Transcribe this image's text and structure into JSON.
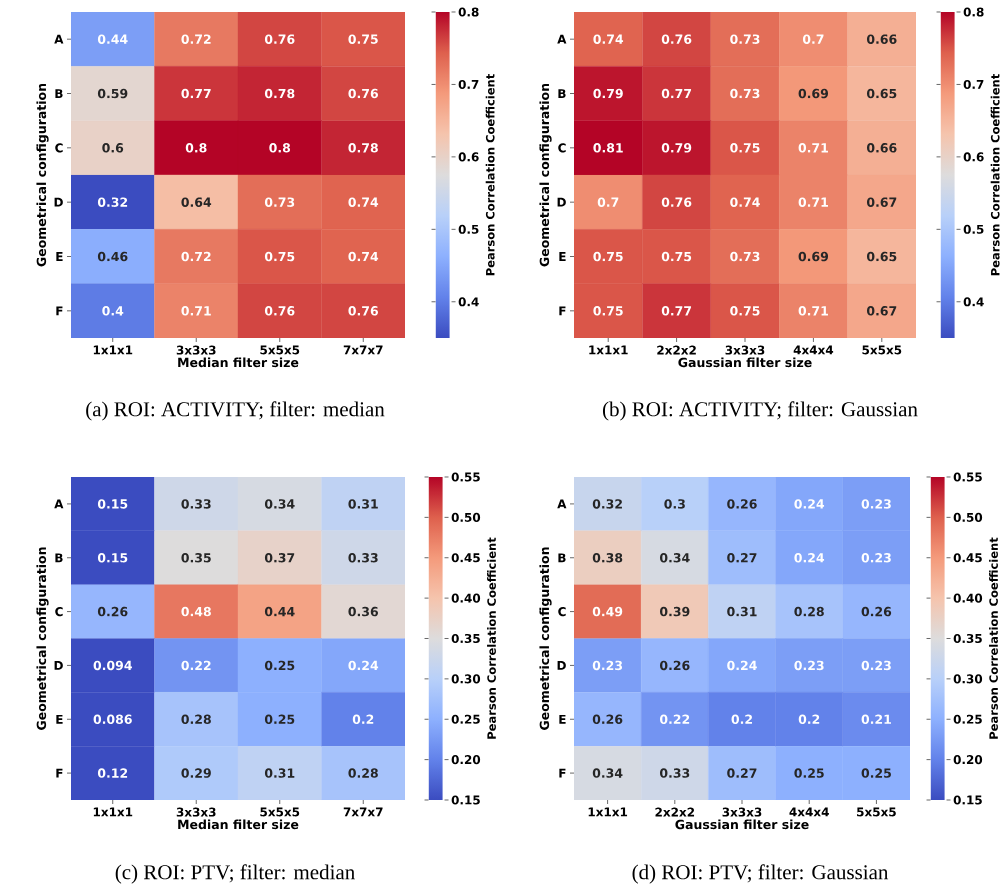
{
  "chart_data": [
    {
      "type": "heatmap",
      "xlabel": "Median filter size",
      "ylabel": "Geometrical configuration",
      "clabel": "Pearson Correlation Coefficient",
      "categories": [
        "1x1x1",
        "3x3x3",
        "5x5x5",
        "7x7x7"
      ],
      "y_categories": [
        "A",
        "B",
        "C",
        "D",
        "E",
        "F"
      ],
      "cells": [
        [
          0.44,
          0.72,
          0.76,
          0.75
        ],
        [
          0.59,
          0.77,
          0.78,
          0.76
        ],
        [
          0.6,
          0.8,
          0.8,
          0.78
        ],
        [
          0.32,
          0.64,
          0.73,
          0.74
        ],
        [
          0.46,
          0.72,
          0.75,
          0.74
        ],
        [
          0.4,
          0.71,
          0.76,
          0.76
        ]
      ],
      "clim": [
        0.35,
        0.8
      ],
      "cticks": [
        0.4,
        0.5,
        0.6,
        0.7,
        0.8
      ],
      "data_labels": true,
      "annotations": [
        "(a) ROI: ACTIVITY; filter: median"
      ]
    },
    {
      "type": "heatmap",
      "xlabel": "Gaussian filter size",
      "ylabel": "Geometrical configuration",
      "clabel": "Pearson Correlation Coefficient",
      "categories": [
        "1x1x1",
        "2x2x2",
        "3x3x3",
        "4x4x4",
        "5x5x5"
      ],
      "y_categories": [
        "A",
        "B",
        "C",
        "D",
        "E",
        "F"
      ],
      "cells": [
        [
          0.74,
          0.76,
          0.73,
          0.7,
          0.66
        ],
        [
          0.79,
          0.77,
          0.73,
          0.69,
          0.65
        ],
        [
          0.81,
          0.79,
          0.75,
          0.71,
          0.66
        ],
        [
          0.7,
          0.76,
          0.74,
          0.71,
          0.67
        ],
        [
          0.75,
          0.75,
          0.73,
          0.69,
          0.65
        ],
        [
          0.75,
          0.77,
          0.75,
          0.71,
          0.67
        ]
      ],
      "clim": [
        0.35,
        0.8
      ],
      "cticks": [
        0.4,
        0.5,
        0.6,
        0.7,
        0.8
      ],
      "data_labels": true,
      "annotations": [
        "(b) ROI: ACTIVITY; filter: Gaussian"
      ]
    },
    {
      "type": "heatmap",
      "xlabel": "Median filter size",
      "ylabel": "Geometrical configuration",
      "clabel": "Pearson Correlation Coefficient",
      "categories": [
        "1x1x1",
        "3x3x3",
        "5x5x5",
        "7x7x7"
      ],
      "y_categories": [
        "A",
        "B",
        "C",
        "D",
        "E",
        "F"
      ],
      "cells": [
        [
          0.15,
          0.33,
          0.34,
          0.31
        ],
        [
          0.15,
          0.35,
          0.37,
          0.33
        ],
        [
          0.26,
          0.48,
          0.44,
          0.36
        ],
        [
          0.094,
          0.22,
          0.25,
          0.24
        ],
        [
          0.086,
          0.28,
          0.25,
          0.2
        ],
        [
          0.12,
          0.29,
          0.31,
          0.28
        ]
      ],
      "clim": [
        0.15,
        0.55
      ],
      "cticks": [
        {
          "value": 0.15,
          "label": "0.15"
        },
        {
          "value": 0.2,
          "label": "0.20"
        },
        {
          "value": 0.25,
          "label": "0.25"
        },
        {
          "value": 0.3,
          "label": "0.30"
        },
        {
          "value": 0.35,
          "label": "0.35"
        },
        {
          "value": 0.4,
          "label": "0.40"
        },
        {
          "value": 0.45,
          "label": "0.45"
        },
        {
          "value": 0.5,
          "label": "0.50"
        },
        {
          "value": 0.55,
          "label": "0.55"
        }
      ],
      "data_labels": true,
      "annotations": [
        "(c) ROI: PTV; filter: median"
      ]
    },
    {
      "type": "heatmap",
      "xlabel": "Gaussian filter size",
      "ylabel": "Geometrical configuration",
      "clabel": "Pearson Correlation Coefficient",
      "categories": [
        "1x1x1",
        "2x2x2",
        "3x3x3",
        "4x4x4",
        "5x5x5"
      ],
      "y_categories": [
        "A",
        "B",
        "C",
        "D",
        "E",
        "F"
      ],
      "cells": [
        [
          0.32,
          0.3,
          0.26,
          0.24,
          0.23
        ],
        [
          0.38,
          0.34,
          0.27,
          0.24,
          0.23
        ],
        [
          0.49,
          0.39,
          0.31,
          0.28,
          0.26
        ],
        [
          0.23,
          0.26,
          0.24,
          0.23,
          0.23
        ],
        [
          0.26,
          0.22,
          0.2,
          0.2,
          0.21
        ],
        [
          0.34,
          0.33,
          0.27,
          0.25,
          0.25
        ]
      ],
      "clim": [
        0.15,
        0.55
      ],
      "cticks": [
        {
          "value": 0.15,
          "label": "0.15"
        },
        {
          "value": 0.2,
          "label": "0.20"
        },
        {
          "value": 0.25,
          "label": "0.25"
        },
        {
          "value": 0.3,
          "label": "0.30"
        },
        {
          "value": 0.35,
          "label": "0.35"
        },
        {
          "value": 0.4,
          "label": "0.40"
        },
        {
          "value": 0.45,
          "label": "0.45"
        },
        {
          "value": 0.5,
          "label": "0.50"
        },
        {
          "value": 0.55,
          "label": "0.55"
        }
      ],
      "data_labels": true,
      "annotations": [
        "(d) ROI: PTV; filter: Gaussian"
      ]
    }
  ]
}
